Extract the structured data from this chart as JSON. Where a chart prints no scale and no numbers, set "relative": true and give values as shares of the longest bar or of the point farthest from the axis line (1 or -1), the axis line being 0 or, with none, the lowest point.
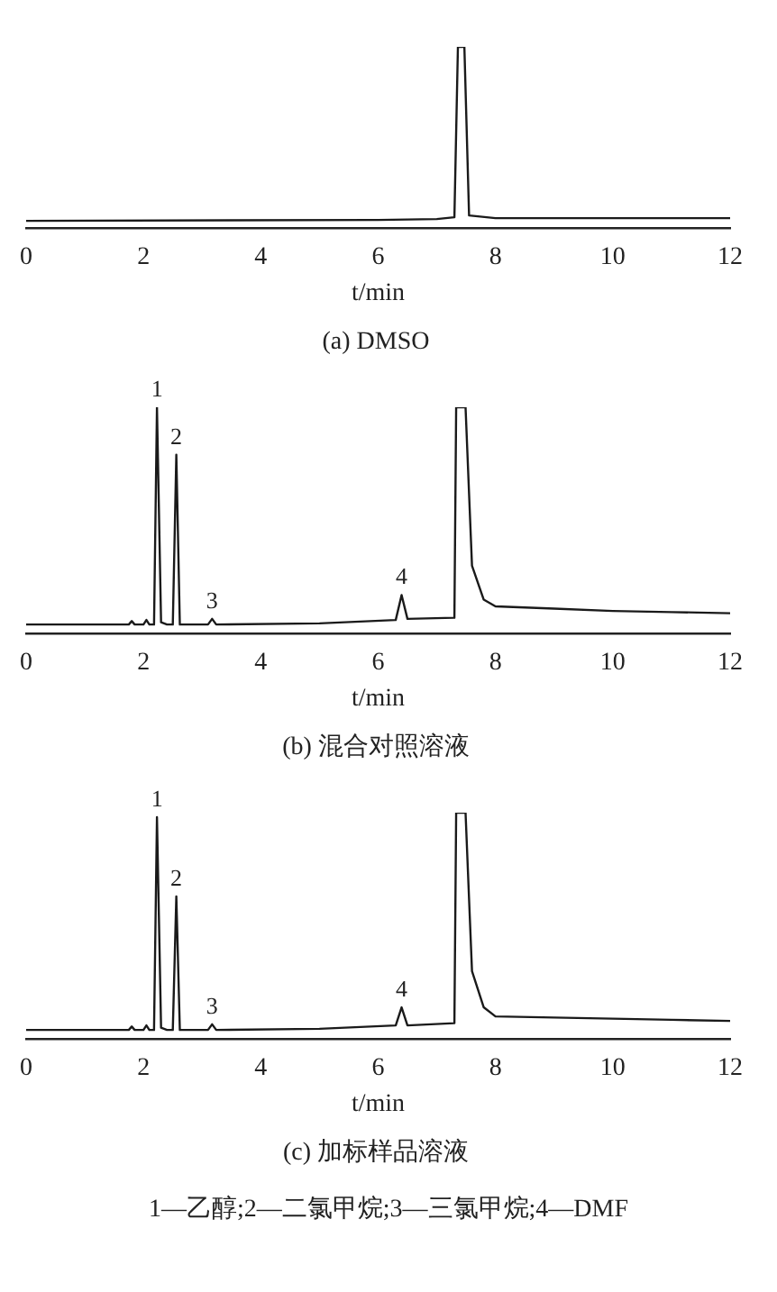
{
  "chart_data": [
    {
      "type": "line",
      "title": "(a) DMSO",
      "xlabel": "t/min",
      "relative": true,
      "color": "#1a1a1a",
      "xlim": [
        0,
        12
      ],
      "xticks": [
        0,
        2,
        4,
        6,
        8,
        10,
        12
      ],
      "x": [
        0,
        6,
        7,
        7.3,
        7.36,
        7.47,
        7.55,
        8,
        10,
        12
      ],
      "values": [
        0.04,
        0.045,
        0.05,
        0.06,
        1,
        1,
        0.07,
        0.055,
        0.055,
        0.055
      ]
    },
    {
      "type": "line",
      "title": "(b) 混合对照溶液",
      "xlabel": "t/min",
      "relative": true,
      "color": "#1a1a1a",
      "xlim": [
        0,
        12
      ],
      "xticks": [
        0,
        2,
        4,
        6,
        8,
        10,
        12
      ],
      "x": [
        0,
        1.75,
        1.8,
        1.85,
        2,
        2.05,
        2.1,
        2.18,
        2.23,
        2.3,
        2.4,
        2.5,
        2.56,
        2.62,
        3.1,
        3.17,
        3.24,
        5,
        6.3,
        6.4,
        6.5,
        7.3,
        7.33,
        7.49,
        7.6,
        7.8,
        8,
        9,
        10,
        11,
        12
      ],
      "values": [
        0.04,
        0.04,
        0.055,
        0.04,
        0.04,
        0.06,
        0.04,
        0.04,
        1,
        0.05,
        0.04,
        0.04,
        0.79,
        0.04,
        0.04,
        0.065,
        0.04,
        0.045,
        0.06,
        0.17,
        0.065,
        0.07,
        1,
        1,
        0.3,
        0.15,
        0.12,
        0.11,
        0.1,
        0.095,
        0.09
      ],
      "annotations": [
        {
          "text": "1",
          "x": 2.23,
          "y": 1
        },
        {
          "text": "2",
          "x": 2.56,
          "y": 0.79
        },
        {
          "text": "3",
          "x": 3.17,
          "y": 0.065
        },
        {
          "text": "4",
          "x": 6.4,
          "y": 0.17
        }
      ]
    },
    {
      "type": "line",
      "title": "(c) 加标样品溶液",
      "xlabel": "t/min",
      "relative": true,
      "color": "#1a1a1a",
      "xlim": [
        0,
        12
      ],
      "xticks": [
        0,
        2,
        4,
        6,
        8,
        10,
        12
      ],
      "x": [
        0,
        1.75,
        1.8,
        1.85,
        2,
        2.05,
        2.1,
        2.18,
        2.23,
        2.3,
        2.4,
        2.5,
        2.56,
        2.62,
        3.1,
        3.17,
        3.24,
        5,
        6.3,
        6.4,
        6.5,
        7.3,
        7.33,
        7.49,
        7.6,
        7.8,
        8,
        9,
        10,
        11,
        12
      ],
      "values": [
        0.04,
        0.04,
        0.055,
        0.04,
        0.04,
        0.06,
        0.04,
        0.04,
        0.98,
        0.05,
        0.04,
        0.04,
        0.63,
        0.04,
        0.04,
        0.065,
        0.04,
        0.045,
        0.06,
        0.14,
        0.06,
        0.07,
        1,
        1,
        0.3,
        0.14,
        0.1,
        0.095,
        0.09,
        0.085,
        0.08
      ],
      "annotations": [
        {
          "text": "1",
          "x": 2.23,
          "y": 0.98
        },
        {
          "text": "2",
          "x": 2.56,
          "y": 0.63
        },
        {
          "text": "3",
          "x": 3.17,
          "y": 0.065
        },
        {
          "text": "4",
          "x": 6.4,
          "y": 0.14
        },
        "1—乙醇;2—二氯甲烷;3—三氯甲烷;4—DMF"
      ]
    }
  ]
}
